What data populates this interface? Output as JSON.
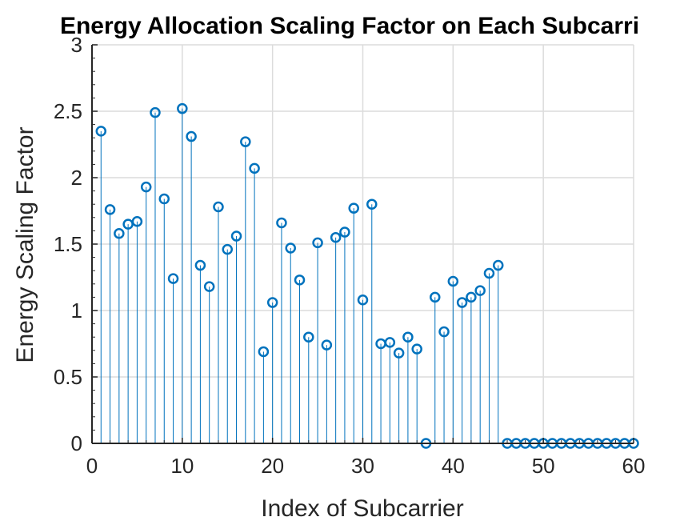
{
  "chart_data": {
    "type": "stem",
    "title": "Energy Allocation Scaling Factor on Each Subcarri",
    "xlabel": "Index of Subcarrier",
    "ylabel": "Energy Scaling Factor",
    "xlim": [
      0,
      60
    ],
    "ylim": [
      0,
      3
    ],
    "xticks": [
      "0",
      "10",
      "20",
      "30",
      "40",
      "50",
      "60"
    ],
    "yticks": [
      "0",
      "0.5",
      "1",
      "1.5",
      "2",
      "2.5",
      "3"
    ],
    "grid": true,
    "marker_color": "#0072BD",
    "x": [
      1,
      2,
      3,
      4,
      5,
      6,
      7,
      8,
      9,
      10,
      11,
      12,
      13,
      14,
      15,
      16,
      17,
      18,
      19,
      20,
      21,
      22,
      23,
      24,
      25,
      26,
      27,
      28,
      29,
      30,
      31,
      32,
      33,
      34,
      35,
      36,
      37,
      38,
      39,
      40,
      41,
      42,
      43,
      44,
      45,
      46,
      47,
      48,
      49,
      50,
      51,
      52,
      53,
      54,
      55,
      56,
      57,
      58,
      59,
      60
    ],
    "y": [
      2.35,
      1.76,
      1.58,
      1.65,
      1.67,
      1.93,
      2.49,
      1.84,
      1.24,
      2.52,
      2.31,
      1.34,
      1.18,
      1.78,
      1.46,
      1.56,
      2.27,
      2.07,
      0.69,
      1.06,
      1.66,
      1.47,
      1.23,
      0.8,
      1.51,
      0.74,
      1.55,
      1.59,
      1.77,
      1.08,
      1.8,
      0.75,
      0.76,
      0.68,
      0.8,
      0.71,
      0.0,
      1.1,
      0.84,
      1.22,
      1.06,
      1.1,
      1.15,
      1.28,
      1.34,
      0,
      0,
      0,
      0,
      0,
      0,
      0,
      0,
      0,
      0,
      0,
      0,
      0,
      0,
      0
    ]
  }
}
